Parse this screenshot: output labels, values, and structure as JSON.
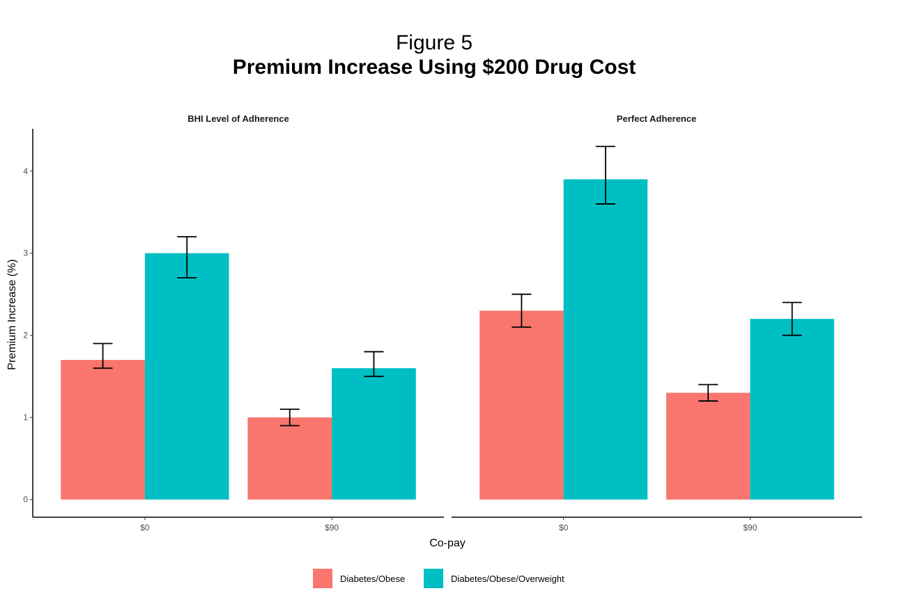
{
  "chart_data": {
    "type": "bar",
    "title": "Figure 5",
    "subtitle": "Premium Increase Using $200 Drug Cost",
    "xlabel": "Co-pay",
    "ylabel": "Premium Increase (%)",
    "ylim": [
      -0.215,
      4.515
    ],
    "yticks": [
      0,
      1,
      2,
      3,
      4
    ],
    "grid": false,
    "legend_position": "bottom",
    "categories": [
      "$0",
      "$90"
    ],
    "colors": {
      "Diabetes/Obese": "#F8766D",
      "Diabetes/Obese/Overweight": "#00BFC4"
    },
    "facets": [
      {
        "label": "BHI Level of Adherence",
        "series": [
          {
            "name": "Diabetes/Obese",
            "values": [
              1.7,
              1.0
            ],
            "err_low": [
              1.6,
              0.9
            ],
            "err_high": [
              1.9,
              1.1
            ]
          },
          {
            "name": "Diabetes/Obese/Overweight",
            "values": [
              3.0,
              1.6
            ],
            "err_low": [
              2.7,
              1.5
            ],
            "err_high": [
              3.2,
              1.8
            ]
          }
        ]
      },
      {
        "label": "Perfect Adherence",
        "series": [
          {
            "name": "Diabetes/Obese",
            "values": [
              2.3,
              1.3
            ],
            "err_low": [
              2.1,
              1.2
            ],
            "err_high": [
              2.5,
              1.4
            ]
          },
          {
            "name": "Diabetes/Obese/Overweight",
            "values": [
              3.9,
              2.2
            ],
            "err_low": [
              3.6,
              2.0
            ],
            "err_high": [
              4.3,
              2.4
            ]
          }
        ]
      }
    ],
    "legend": [
      "Diabetes/Obese",
      "Diabetes/Obese/Overweight"
    ]
  }
}
